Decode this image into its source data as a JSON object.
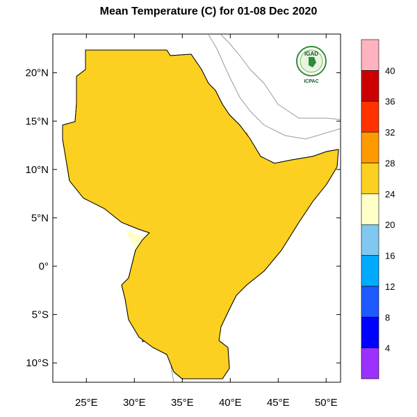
{
  "title": "Mean Temperature (C) for 01-08 Dec 2020",
  "map": {
    "lat_range": [
      -12,
      24
    ],
    "lon_range": [
      21.5,
      51.5
    ],
    "lat_ticks": [
      {
        "value": 20,
        "label": "20°N"
      },
      {
        "value": 15,
        "label": "15°N"
      },
      {
        "value": 10,
        "label": "10°N"
      },
      {
        "value": 5,
        "label": "5°N"
      },
      {
        "value": 0,
        "label": "0°"
      },
      {
        "value": -5,
        "label": "5°S"
      },
      {
        "value": -10,
        "label": "10°S"
      }
    ],
    "lon_ticks": [
      {
        "value": 25,
        "label": "25°E"
      },
      {
        "value": 30,
        "label": "30°E"
      },
      {
        "value": 35,
        "label": "35°E"
      },
      {
        "value": 40,
        "label": "40°E"
      },
      {
        "value": 45,
        "label": "45°E"
      },
      {
        "value": 50,
        "label": "50°E"
      }
    ]
  },
  "colorbar": {
    "labels": [
      "4",
      "8",
      "12",
      "16",
      "20",
      "24",
      "28",
      "32",
      "36",
      "40"
    ],
    "colors": [
      "#9b30ff",
      "#0000ff",
      "#1e5aff",
      "#00aaff",
      "#80c8f0",
      "#ffffc8",
      "#fcd020",
      "#ff9900",
      "#ff3300",
      "#cc0000",
      "#ffb3c0"
    ]
  },
  "logo": {
    "name": "IGAD",
    "subtitle": "ICPAC"
  }
}
